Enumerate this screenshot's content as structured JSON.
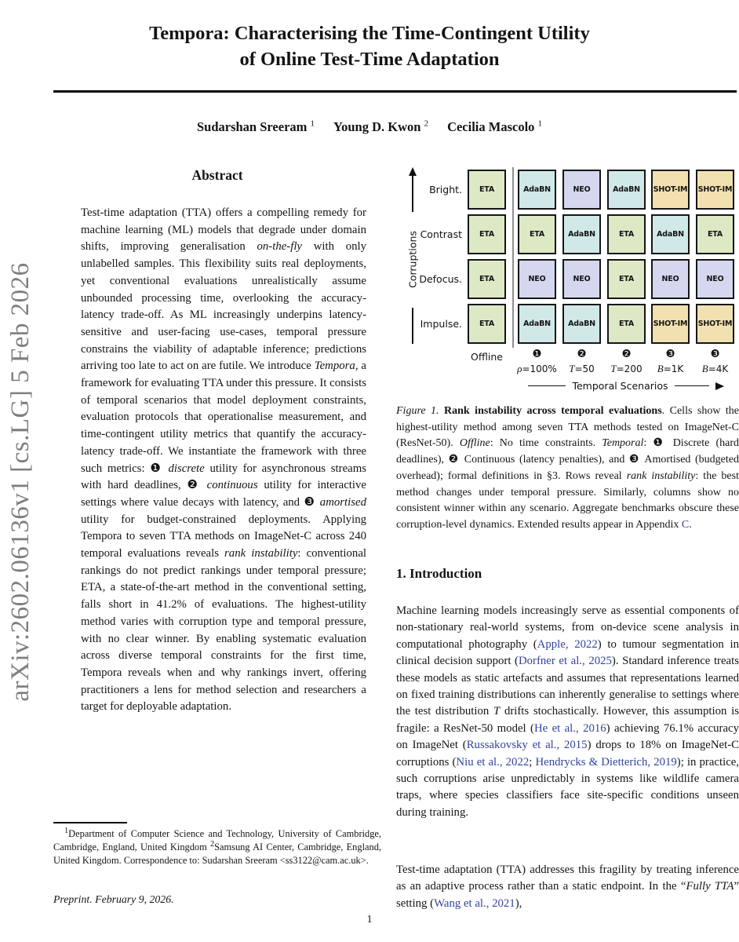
{
  "arxiv_banner": "arXiv:2602.06136v1  [cs.LG]  5 Feb 2026",
  "title_line1": "Tempora: Characterising the Time-Contingent Utility",
  "title_line2": "of Online Test-Time Adaptation",
  "authors": [
    {
      "name": "Sudarshan Sreeram",
      "sup": "1"
    },
    {
      "name": "Young D. Kwon",
      "sup": "2"
    },
    {
      "name": "Cecilia Mascolo",
      "sup": "1"
    }
  ],
  "abstract": {
    "heading": "Abstract",
    "body": [
      {
        "t": "Test-time adaptation (TTA) offers a compelling remedy for machine learning (ML) models that degrade under domain shifts, improving generalisation "
      },
      {
        "t": "on-the-fly",
        "s": "i"
      },
      {
        "t": " with only unlabelled samples. This flexibility suits real deployments, yet conventional evaluations unrealistically assume unbounded processing time, overlooking the accuracy-latency trade-off. As ML increasingly underpins latency-sensitive and user-facing use-cases, temporal pressure constrains the viability of adaptable inference; predictions arriving too late to act on are futile. We introduce "
      },
      {
        "t": "Tempora",
        "s": "i"
      },
      {
        "t": ", a framework for evaluating TTA under this pressure. It consists of temporal scenarios that model deployment constraints, evaluation protocols that operationalise measurement, and time-contingent utility metrics that quantify the accuracy-latency trade-off. We instantiate the framework with three such metrics: ❶ "
      },
      {
        "t": "discrete",
        "s": "i"
      },
      {
        "t": " utility for asynchronous streams with hard deadlines, ❷ "
      },
      {
        "t": "continuous",
        "s": "i"
      },
      {
        "t": " utility for interactive settings where value decays with latency, and ❸ "
      },
      {
        "t": "amortised",
        "s": "i"
      },
      {
        "t": " utility for budget-constrained deployments. Applying Tempora to seven TTA methods on ImageNet-C across 240 temporal evaluations reveals "
      },
      {
        "t": "rank instability",
        "s": "i"
      },
      {
        "t": ": conventional rankings do not predict rankings under temporal pressure; ETA, a state-of-the-art method in the conventional setting, falls short in 41.2% of evaluations. The highest-utility method varies with corruption type and temporal pressure, with no clear winner. By enabling systematic evaluation across diverse temporal constraints for the first time, Tempora reveals when and why rankings invert, offering practitioners a lens for method selection and researchers a target for deployable adaptation."
      }
    ]
  },
  "figure1": {
    "y_axis_label": "Corruptions",
    "x_axis_label": "Temporal Scenarios",
    "row_labels": [
      "Bright.",
      "Contrast",
      "Defocus.",
      "Impulse."
    ],
    "offline_label": "Offline",
    "scenarios": [
      {
        "badge": "❶",
        "label": [
          {
            "t": "ρ",
            "s": "m"
          },
          {
            "t": "=100%"
          }
        ]
      },
      {
        "badge": "❷",
        "label": [
          {
            "t": "T",
            "s": "m"
          },
          {
            "t": "=50"
          }
        ]
      },
      {
        "badge": "❷",
        "label": [
          {
            "t": "T",
            "s": "m"
          },
          {
            "t": "=200"
          }
        ]
      },
      {
        "badge": "❸",
        "label": [
          {
            "t": "B",
            "s": "m"
          },
          {
            "t": "=1K"
          }
        ]
      },
      {
        "badge": "❸",
        "label": [
          {
            "t": "B",
            "s": "m"
          },
          {
            "t": "=4K"
          }
        ]
      }
    ],
    "cells": [
      [
        "ETA",
        "AdaBN",
        "NEO",
        "AdaBN",
        "SHOT-IM",
        "SHOT-IM"
      ],
      [
        "ETA",
        "ETA",
        "AdaBN",
        "ETA",
        "AdaBN",
        "ETA"
      ],
      [
        "ETA",
        "NEO",
        "NEO",
        "ETA",
        "NEO",
        "NEO"
      ],
      [
        "ETA",
        "AdaBN",
        "AdaBN",
        "ETA",
        "SHOT-IM",
        "SHOT-IM"
      ]
    ],
    "method_colors": {
      "ETA": "#dde9c4",
      "AdaBN": "#d0e9e8",
      "NEO": "#d4d7ee",
      "SHOT-IM": "#f2e1b0"
    }
  },
  "figure_caption": [
    {
      "t": "Figure 1.",
      "s": "i"
    },
    {
      "t": " Rank instability across temporal evaluations",
      "s": "b"
    },
    {
      "t": ". Cells show the highest-utility method among seven TTA methods tested on ImageNet-C (ResNet-50). "
    },
    {
      "t": "Offline",
      "s": "i"
    },
    {
      "t": ": No time constraints. "
    },
    {
      "t": "Temporal",
      "s": "i"
    },
    {
      "t": ": ❶ Discrete (hard deadlines), ❷ Continuous (latency penalties), and ❸ Amortised (budgeted overhead); formal definitions in §3. Rows reveal "
    },
    {
      "t": "rank instability",
      "s": "i"
    },
    {
      "t": ": the best method changes under temporal pressure. Similarly, columns show no consistent winner within any scenario. Aggregate benchmarks obscure these corruption-level dynamics. Extended results appear in Appendix "
    },
    {
      "t": "C",
      "s": "l"
    },
    {
      "t": "."
    }
  ],
  "intro": {
    "heading": "1. Introduction",
    "para1": [
      {
        "t": "Machine learning models increasingly serve as essential components of non-stationary real-world systems, from on-device scene analysis in computational photography ("
      },
      {
        "t": "Apple",
        "s": "l"
      },
      {
        "t": ", ",
        "s": "l"
      },
      {
        "t": "2022",
        "s": "l"
      },
      {
        "t": ") to tumour segmentation in clinical decision support ("
      },
      {
        "t": "Dorfner et al.",
        "s": "l"
      },
      {
        "t": ", ",
        "s": "l"
      },
      {
        "t": "2025",
        "s": "l"
      },
      {
        "t": "). Standard inference treats these models as static artefacts and assumes that representations learned on fixed training distributions can inherently generalise to settings where the test distribution "
      },
      {
        "t": "T",
        "s": "i"
      },
      {
        "t": " drifts stochastically. However, this assumption is fragile: a ResNet-50 model ("
      },
      {
        "t": "He et al.",
        "s": "l"
      },
      {
        "t": ", ",
        "s": "l"
      },
      {
        "t": "2016",
        "s": "l"
      },
      {
        "t": ") achieving 76.1% accuracy on ImageNet ("
      },
      {
        "t": "Russakovsky et al.",
        "s": "l"
      },
      {
        "t": ", ",
        "s": "l"
      },
      {
        "t": "2015",
        "s": "l"
      },
      {
        "t": ") drops to 18% on ImageNet-C corruptions ("
      },
      {
        "t": "Niu et al.",
        "s": "l"
      },
      {
        "t": ", ",
        "s": "l"
      },
      {
        "t": "2022",
        "s": "l"
      },
      {
        "t": "; "
      },
      {
        "t": "Hendrycks & Dietterich",
        "s": "l"
      },
      {
        "t": ", ",
        "s": "l"
      },
      {
        "t": "2019",
        "s": "l"
      },
      {
        "t": "); in practice, such corruptions arise unpredictably in systems like wildlife camera traps, where species classifiers face site-specific conditions unseen during training."
      }
    ],
    "para2": [
      {
        "t": "Test-time adaptation (TTA) addresses this fragility by treating inference as an adaptive process rather than a static endpoint. In the “"
      },
      {
        "t": "Fully TTA",
        "s": "i"
      },
      {
        "t": "” setting ("
      },
      {
        "t": "Wang et al.",
        "s": "l"
      },
      {
        "t": ", ",
        "s": "l"
      },
      {
        "t": "2021",
        "s": "l"
      },
      {
        "t": "),"
      }
    ]
  },
  "footnote": [
    {
      "t": "1",
      "s": "p"
    },
    {
      "t": "Department of Computer Science and Technology, University of Cambridge, Cambridge, England, United Kingdom "
    },
    {
      "t": "2",
      "s": "p"
    },
    {
      "t": "Samsung AI Center, Cambridge, England, United Kingdom. Correspondence to: Sudarshan Sreeram <ss3122@cam.ac.uk>."
    }
  ],
  "preprint_note": "Preprint. February 9, 2026.",
  "page_number": "1"
}
